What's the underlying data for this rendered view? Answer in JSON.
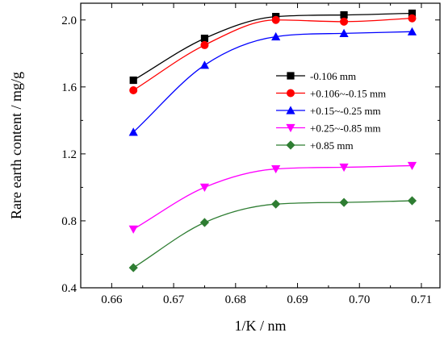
{
  "chart_data": {
    "type": "line",
    "title": "",
    "xlabel": "1/K / nm",
    "ylabel": "Rare earth content / mg/g",
    "xlim": [
      0.655,
      0.713
    ],
    "ylim": [
      0.4,
      2.1
    ],
    "xticks": [
      "0.66",
      "0.67",
      "0.68",
      "0.69",
      "0.70",
      "0.71"
    ],
    "yticks": [
      "0.4",
      "0.8",
      "1.2",
      "1.6",
      "2.0"
    ],
    "x": [
      0.6635,
      0.675,
      0.6865,
      0.6975,
      0.7085
    ],
    "grid": false,
    "legend_position": "right",
    "series": [
      {
        "name": "-0.106 mm",
        "color": "#000000",
        "marker": "square",
        "values": [
          1.64,
          1.89,
          2.02,
          2.03,
          2.04
        ]
      },
      {
        "name": "+0.106~-0.15 mm",
        "color": "#ff0000",
        "marker": "circle",
        "values": [
          1.58,
          1.85,
          2.0,
          1.99,
          2.01
        ]
      },
      {
        "name": "+0.15~-0.25 mm",
        "color": "#0000ff",
        "marker": "triangle-up",
        "values": [
          1.33,
          1.73,
          1.9,
          1.92,
          1.93
        ]
      },
      {
        "name": "+0.25~-0.85 mm",
        "color": "#ff00ff",
        "marker": "triangle-down",
        "values": [
          0.75,
          1.0,
          1.11,
          1.12,
          1.13
        ]
      },
      {
        "name": "+0.85 mm",
        "color": "#2e7d32",
        "marker": "diamond",
        "values": [
          0.52,
          0.79,
          0.9,
          0.91,
          0.92
        ]
      }
    ]
  }
}
